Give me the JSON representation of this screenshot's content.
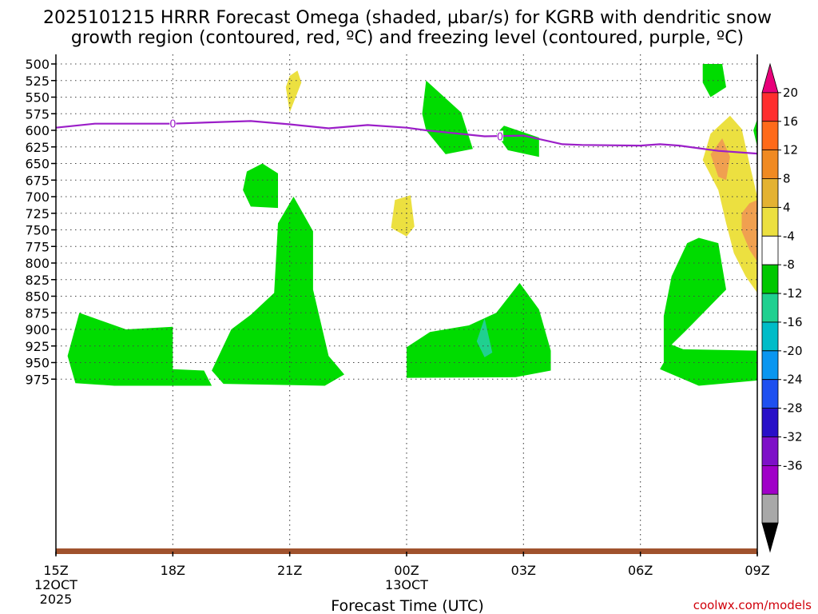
{
  "chart_data": {
    "type": "time-height cross section",
    "title_line1": "2025101215 HRRR Forecast Omega (shaded, µbar/s) for KGRB with dendritic snow",
    "title_line2": "growth region (contoured, red, ºC) and freezing level (contoured, purple, ºC)",
    "xlabel": "Forecast Time (UTC)",
    "credit": "coolwx.com/models",
    "x_ticks": [
      {
        "hour": 0,
        "label": "15Z",
        "sub1": "12OCT",
        "sub2": "2025"
      },
      {
        "hour": 3,
        "label": "18Z",
        "sub1": "",
        "sub2": ""
      },
      {
        "hour": 6,
        "label": "21Z",
        "sub1": "",
        "sub2": ""
      },
      {
        "hour": 9,
        "label": "00Z",
        "sub1": "13OCT",
        "sub2": ""
      },
      {
        "hour": 12,
        "label": "03Z",
        "sub1": "",
        "sub2": ""
      },
      {
        "hour": 15,
        "label": "06Z",
        "sub1": "",
        "sub2": ""
      },
      {
        "hour": 18,
        "label": "09Z",
        "sub1": "",
        "sub2": ""
      }
    ],
    "x_range_hours": [
      0,
      18
    ],
    "y_ticks": [
      "500",
      "525",
      "550",
      "575",
      "600",
      "625",
      "650",
      "675",
      "700",
      "725",
      "750",
      "775",
      "800",
      "825",
      "850",
      "875",
      "900",
      "925",
      "950",
      "975"
    ],
    "colorbar": {
      "labels": [
        "20",
        "16",
        "12",
        "8",
        "4",
        "-4",
        "-8",
        "-12",
        "-16",
        "-20",
        "-24",
        "-28",
        "-32",
        "-36"
      ],
      "colors": [
        "#e8007a",
        "#ff2e2e",
        "#ff6a1a",
        "#f08a22",
        "#e4b232",
        "#ece040",
        "#ffffff",
        "#00c800",
        "#20d090",
        "#00bcc8",
        "#0a96f0",
        "#1e50f0",
        "#2810c8",
        "#7e10c8",
        "#a000c8",
        "#a8a8a8",
        "#000000"
      ]
    },
    "omega_regions": [
      {
        "name": "green-low-left",
        "fill": "#00dc00",
        "points": [
          [
            0.5,
            981
          ],
          [
            0.3,
            940
          ],
          [
            0.6,
            875
          ],
          [
            1.8,
            900
          ],
          [
            3,
            896
          ],
          [
            3,
            960
          ],
          [
            3.8,
            962
          ],
          [
            4,
            985
          ],
          [
            1.5,
            985
          ]
        ]
      },
      {
        "name": "green-21z-column",
        "fill": "#00dc00",
        "points": [
          [
            4,
            962
          ],
          [
            4.5,
            900
          ],
          [
            5,
            878
          ],
          [
            5.6,
            845
          ],
          [
            5.7,
            740
          ],
          [
            6.1,
            700
          ],
          [
            6.6,
            752
          ],
          [
            6.6,
            840
          ],
          [
            7,
            940
          ],
          [
            7.4,
            968
          ],
          [
            6.9,
            985
          ],
          [
            4.3,
            982
          ]
        ]
      },
      {
        "name": "green-00z-column",
        "fill": "#00dc00",
        "points": [
          [
            9.5,
            525
          ],
          [
            10.4,
            573
          ],
          [
            10.7,
            628
          ],
          [
            10,
            636
          ],
          [
            9.5,
            600
          ],
          [
            9.4,
            575
          ]
        ]
      },
      {
        "name": "green-02z-patch",
        "fill": "#00dc00",
        "points": [
          [
            11.6,
            630
          ],
          [
            12.4,
            640
          ],
          [
            12.4,
            611
          ],
          [
            12,
            603
          ],
          [
            11.5,
            593
          ],
          [
            11.3,
            605
          ],
          [
            11.6,
            630
          ]
        ]
      },
      {
        "name": "green-low-center",
        "fill": "#00dc00",
        "points": [
          [
            9,
            927
          ],
          [
            9.6,
            904
          ],
          [
            10.6,
            894
          ],
          [
            11.3,
            875
          ],
          [
            11.9,
            830
          ],
          [
            12.4,
            870
          ],
          [
            12.7,
            932
          ],
          [
            12.7,
            962
          ],
          [
            11.8,
            972
          ],
          [
            9,
            973
          ]
        ]
      },
      {
        "name": "green-0530z-patch",
        "fill": "#00dc00",
        "points": [
          [
            4.9,
            662
          ],
          [
            5.3,
            650
          ],
          [
            5.7,
            665
          ],
          [
            5.7,
            717
          ],
          [
            5,
            715
          ],
          [
            4.8,
            690
          ],
          [
            4.9,
            662
          ]
        ]
      },
      {
        "name": "green-low-right",
        "fill": "#00dc00",
        "points": [
          [
            15.6,
            950
          ],
          [
            15.6,
            880
          ],
          [
            15.8,
            820
          ],
          [
            16.2,
            770
          ],
          [
            16.5,
            762
          ],
          [
            17,
            770
          ],
          [
            17.2,
            840
          ],
          [
            16.2,
            900
          ],
          [
            15.8,
            923
          ],
          [
            16.1,
            930
          ],
          [
            18,
            932
          ],
          [
            18,
            977
          ],
          [
            16.5,
            985
          ],
          [
            15.5,
            960
          ]
        ]
      },
      {
        "name": "green-0830z-top",
        "fill": "#00dc00",
        "points": [
          [
            16.6,
            500
          ],
          [
            17.1,
            500
          ],
          [
            17.2,
            535
          ],
          [
            16.8,
            550
          ],
          [
            16.6,
            528
          ]
        ]
      },
      {
        "name": "green-09z-edge",
        "fill": "#00dc00",
        "points": [
          [
            18,
            583
          ],
          [
            18,
            625
          ],
          [
            17.9,
            600
          ]
        ]
      },
      {
        "name": "yellow-21z-top",
        "fill": "#ece040",
        "points": [
          [
            6,
            518
          ],
          [
            6.2,
            510
          ],
          [
            6.3,
            528
          ],
          [
            6.0,
            573
          ],
          [
            5.9,
            535
          ]
        ]
      },
      {
        "name": "yellow-00z-mid",
        "fill": "#ece040",
        "points": [
          [
            8.7,
            705
          ],
          [
            9.1,
            698
          ],
          [
            9.2,
            745
          ],
          [
            9.0,
            760
          ],
          [
            8.6,
            747
          ]
        ]
      },
      {
        "name": "yellow-right",
        "fill": "#ece040",
        "points": [
          [
            16.8,
            605
          ],
          [
            17.3,
            578
          ],
          [
            17.6,
            598
          ],
          [
            17.8,
            650
          ],
          [
            18,
            700
          ],
          [
            18,
            845
          ],
          [
            17.7,
            820
          ],
          [
            17.4,
            785
          ],
          [
            17.2,
            740
          ],
          [
            17,
            690
          ],
          [
            16.6,
            645
          ],
          [
            16.8,
            605
          ]
        ]
      },
      {
        "name": "orange-right-upper",
        "fill": "#f0a050",
        "points": [
          [
            16.8,
            636
          ],
          [
            17.1,
            612
          ],
          [
            17.3,
            640
          ],
          [
            17.2,
            675
          ],
          [
            17,
            670
          ]
        ]
      },
      {
        "name": "orange-right-lower",
        "fill": "#f0a050",
        "points": [
          [
            17.6,
            725
          ],
          [
            17.8,
            710
          ],
          [
            18,
            705
          ],
          [
            18,
            798
          ],
          [
            17.8,
            780
          ],
          [
            17.6,
            752
          ]
        ]
      },
      {
        "name": "teal-0230z",
        "fill": "#20d090",
        "points": [
          [
            10.8,
            918
          ],
          [
            11.0,
            883
          ],
          [
            11.2,
            935
          ],
          [
            11.0,
            942
          ],
          [
            10.8,
            918
          ]
        ]
      }
    ],
    "freezing_level": {
      "label": "0",
      "color": "#9b1ec8",
      "points": [
        [
          0,
          596
        ],
        [
          1,
          590
        ],
        [
          3,
          590
        ],
        [
          4,
          588
        ],
        [
          5,
          586
        ],
        [
          6,
          591
        ],
        [
          7,
          597
        ],
        [
          8,
          592
        ],
        [
          9,
          596
        ],
        [
          9.5,
          600
        ],
        [
          10,
          603
        ],
        [
          11,
          609
        ],
        [
          12,
          608
        ],
        [
          13,
          621
        ],
        [
          13.5,
          622
        ],
        [
          15,
          623
        ],
        [
          15.5,
          621
        ],
        [
          16,
          623
        ],
        [
          17,
          631
        ],
        [
          18,
          635
        ]
      ],
      "label_positions": [
        [
          3,
          590
        ],
        [
          11.4,
          609
        ]
      ]
    },
    "ground_color": "#a0522d"
  }
}
